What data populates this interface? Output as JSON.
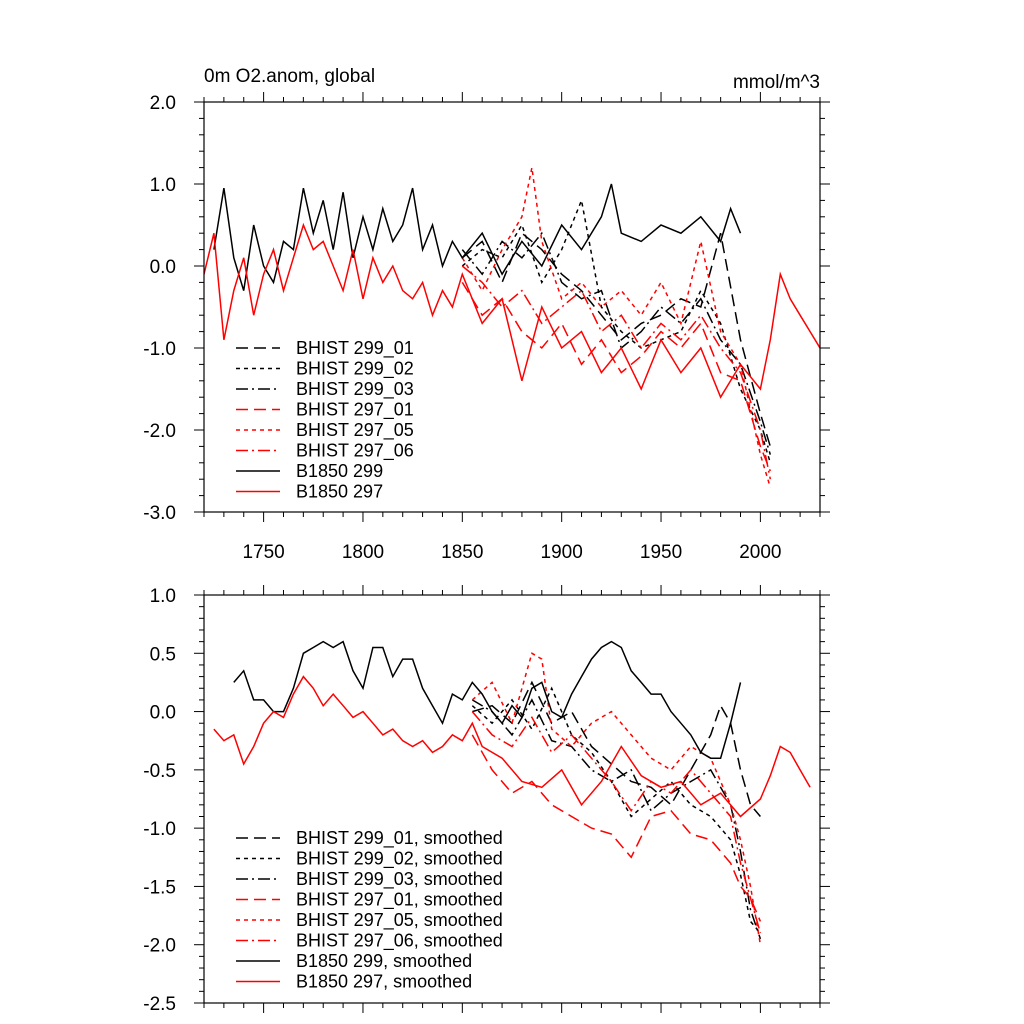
{
  "chart_data": [
    {
      "type": "line",
      "title_left": "0m O2.anom, global",
      "title_right": "mmol/m^3",
      "xlim": [
        1720,
        2030
      ],
      "ylim": [
        -3.0,
        2.0
      ],
      "x_ticks": [
        1750,
        1800,
        1850,
        1900,
        1950,
        2000
      ],
      "x_tick_labels": [
        "1750",
        "1800",
        "1850",
        "1900",
        "1950",
        "2000"
      ],
      "y_ticks": [
        2.0,
        1.0,
        0.0,
        -1.0,
        -2.0,
        -3.0
      ],
      "y_tick_labels": [
        "2.0",
        "1.0",
        "0.0",
        "-1.0",
        "-2.0",
        "-3.0"
      ],
      "legend_position": "lower-left",
      "series": [
        {
          "name": "BHIST 299_01",
          "color": "#000000",
          "dash": "long-dash",
          "x": [
            1850,
            1860,
            1870,
            1880,
            1890,
            1900,
            1910,
            1920,
            1930,
            1940,
            1950,
            1960,
            1970,
            1980,
            1990,
            2000,
            2005
          ],
          "y": [
            0.1,
            0.3,
            -0.2,
            0.4,
            0.2,
            -0.1,
            -0.3,
            -0.6,
            -0.9,
            -0.7,
            -0.6,
            -0.4,
            -0.5,
            0.4,
            -0.9,
            -1.8,
            -2.2
          ]
        },
        {
          "name": "BHIST 299_02",
          "color": "#000000",
          "dash": "short-dash",
          "x": [
            1850,
            1860,
            1870,
            1880,
            1890,
            1900,
            1910,
            1920,
            1930,
            1940,
            1950,
            1960,
            1970,
            1980,
            1990,
            2000,
            2005
          ],
          "y": [
            0.0,
            0.2,
            0.1,
            0.5,
            -0.2,
            0.2,
            0.8,
            -0.5,
            -0.8,
            -1.0,
            -0.9,
            -0.8,
            -0.3,
            -0.7,
            -1.5,
            -2.0,
            -2.4
          ]
        },
        {
          "name": "BHIST 299_03",
          "color": "#000000",
          "dash": "dash-dot",
          "x": [
            1850,
            1860,
            1870,
            1880,
            1890,
            1900,
            1910,
            1920,
            1930,
            1940,
            1950,
            1960,
            1970,
            1980,
            1990,
            2000,
            2005
          ],
          "y": [
            0.2,
            -0.1,
            0.3,
            0.1,
            0.4,
            -0.2,
            -0.4,
            -0.3,
            -1.0,
            -0.8,
            -0.5,
            -0.7,
            -0.4,
            -0.9,
            -1.2,
            -1.9,
            -2.3
          ]
        },
        {
          "name": "BHIST 297_01",
          "color": "#ff0000",
          "dash": "long-dash",
          "x": [
            1850,
            1860,
            1870,
            1880,
            1890,
            1900,
            1910,
            1920,
            1930,
            1940,
            1950,
            1960,
            1970,
            1980,
            1990,
            2000,
            2005
          ],
          "y": [
            -0.2,
            -0.6,
            -0.4,
            -0.8,
            -1.0,
            -0.7,
            -1.2,
            -0.9,
            -1.3,
            -1.1,
            -0.8,
            -1.0,
            -0.7,
            -1.3,
            -1.4,
            -2.2,
            -2.5
          ]
        },
        {
          "name": "BHIST 297_05",
          "color": "#ff0000",
          "dash": "short-dash",
          "x": [
            1850,
            1860,
            1870,
            1880,
            1885,
            1890,
            1900,
            1910,
            1920,
            1930,
            1940,
            1950,
            1960,
            1970,
            1980,
            1990,
            2000,
            2005
          ],
          "y": [
            0.1,
            -0.3,
            0.2,
            0.6,
            1.2,
            0.3,
            -0.4,
            -0.2,
            -0.5,
            -0.3,
            -0.6,
            -0.2,
            -0.7,
            0.3,
            -0.8,
            -1.2,
            -2.3,
            -2.7
          ]
        },
        {
          "name": "BHIST 297_06",
          "color": "#ff0000",
          "dash": "dash-dot",
          "x": [
            1850,
            1860,
            1870,
            1880,
            1890,
            1900,
            1910,
            1920,
            1930,
            1940,
            1950,
            1960,
            1970,
            1980,
            1990,
            2000,
            2005
          ],
          "y": [
            0.0,
            -0.2,
            -0.5,
            -0.3,
            -0.7,
            -0.5,
            -0.3,
            -0.8,
            -0.6,
            -1.0,
            -0.7,
            -0.9,
            -0.6,
            -1.0,
            -1.3,
            -2.0,
            -2.6
          ]
        },
        {
          "name": "B1850 299",
          "color": "#000000",
          "dash": "solid",
          "x": [
            1725,
            1730,
            1735,
            1740,
            1745,
            1750,
            1755,
            1760,
            1765,
            1770,
            1775,
            1780,
            1785,
            1790,
            1795,
            1800,
            1805,
            1810,
            1815,
            1820,
            1825,
            1830,
            1835,
            1840,
            1845,
            1850,
            1860,
            1870,
            1880,
            1890,
            1900,
            1910,
            1920,
            1925,
            1930,
            1940,
            1950,
            1960,
            1970,
            1980,
            1985,
            1990
          ],
          "y": [
            0.2,
            0.95,
            0.1,
            -0.3,
            0.5,
            0.0,
            -0.2,
            0.3,
            0.2,
            0.95,
            0.4,
            0.8,
            0.2,
            0.9,
            0.1,
            0.6,
            0.2,
            0.7,
            0.3,
            0.5,
            0.95,
            0.2,
            0.5,
            0.0,
            0.3,
            0.1,
            0.4,
            -0.1,
            0.3,
            0.0,
            0.5,
            0.2,
            0.6,
            1.0,
            0.4,
            0.3,
            0.5,
            0.4,
            0.6,
            0.3,
            0.7,
            0.4
          ]
        },
        {
          "name": "B1850 297",
          "color": "#ff0000",
          "dash": "solid",
          "x": [
            1720,
            1725,
            1730,
            1735,
            1740,
            1745,
            1750,
            1755,
            1760,
            1765,
            1770,
            1775,
            1780,
            1785,
            1790,
            1795,
            1800,
            1805,
            1810,
            1815,
            1820,
            1825,
            1830,
            1835,
            1840,
            1845,
            1850,
            1860,
            1870,
            1880,
            1890,
            1900,
            1910,
            1920,
            1930,
            1940,
            1950,
            1960,
            1970,
            1980,
            1990,
            2000,
            2005,
            2010,
            2015,
            2020,
            2025,
            2030
          ],
          "y": [
            -0.1,
            0.4,
            -0.9,
            -0.3,
            0.1,
            -0.6,
            -0.1,
            0.2,
            -0.3,
            0.1,
            0.5,
            0.2,
            0.3,
            0.0,
            -0.3,
            0.2,
            -0.4,
            0.1,
            -0.2,
            0.0,
            -0.3,
            -0.4,
            -0.2,
            -0.6,
            -0.3,
            -0.5,
            -0.1,
            -0.7,
            -0.4,
            -1.4,
            -0.5,
            -1.0,
            -0.8,
            -1.3,
            -1.0,
            -1.5,
            -0.9,
            -1.3,
            -1.0,
            -1.6,
            -1.2,
            -1.5,
            -0.9,
            -0.1,
            -0.4,
            -0.6,
            -0.8,
            -1.0
          ]
        }
      ]
    },
    {
      "type": "line",
      "xlim": [
        1720,
        2030
      ],
      "ylim": [
        -2.5,
        1.0
      ],
      "y_ticks": [
        1.0,
        0.5,
        0.0,
        -0.5,
        -1.0,
        -1.5,
        -2.0,
        -2.5
      ],
      "y_tick_labels": [
        "1.0",
        "0.5",
        "0.0",
        "-0.5",
        "-1.0",
        "-1.5",
        "-2.0",
        "-2.5"
      ],
      "legend_position": "lower-left",
      "series": [
        {
          "name": "BHIST 299_01, smoothed",
          "color": "#000000",
          "dash": "long-dash",
          "x": [
            1855,
            1865,
            1875,
            1885,
            1895,
            1905,
            1915,
            1925,
            1935,
            1945,
            1955,
            1965,
            1975,
            1980,
            1985,
            1990,
            1995,
            2000
          ],
          "y": [
            0.0,
            0.05,
            -0.1,
            0.25,
            -0.1,
            0.0,
            -0.3,
            -0.45,
            -0.6,
            -0.65,
            -0.8,
            -0.5,
            -0.2,
            0.05,
            -0.1,
            -0.5,
            -0.8,
            -0.9
          ]
        },
        {
          "name": "BHIST 299_02, smoothed",
          "color": "#000000",
          "dash": "short-dash",
          "x": [
            1855,
            1865,
            1875,
            1885,
            1895,
            1905,
            1915,
            1925,
            1935,
            1945,
            1955,
            1965,
            1975,
            1985,
            1990,
            1995,
            2000
          ],
          "y": [
            0.05,
            -0.1,
            0.1,
            -0.15,
            0.2,
            -0.2,
            -0.35,
            -0.6,
            -0.9,
            -0.75,
            -0.6,
            -0.8,
            -0.9,
            -1.1,
            -1.4,
            -1.8,
            -1.9
          ]
        },
        {
          "name": "BHIST 299_03, smoothed",
          "color": "#000000",
          "dash": "dash-dot",
          "x": [
            1855,
            1865,
            1875,
            1885,
            1895,
            1905,
            1915,
            1925,
            1935,
            1945,
            1955,
            1965,
            1975,
            1985,
            1990,
            1995,
            2000
          ],
          "y": [
            0.1,
            0.0,
            -0.2,
            0.1,
            -0.25,
            -0.3,
            -0.5,
            -0.6,
            -0.5,
            -0.85,
            -0.7,
            -0.6,
            -0.5,
            -0.8,
            -1.2,
            -1.7,
            -1.95
          ]
        },
        {
          "name": "BHIST 297_01, smoothed",
          "color": "#ff0000",
          "dash": "long-dash",
          "x": [
            1855,
            1865,
            1875,
            1885,
            1895,
            1905,
            1915,
            1925,
            1935,
            1945,
            1955,
            1965,
            1975,
            1985,
            1990,
            1995,
            2000
          ],
          "y": [
            -0.2,
            -0.5,
            -0.7,
            -0.6,
            -0.8,
            -0.9,
            -1.0,
            -1.05,
            -1.25,
            -0.9,
            -0.85,
            -1.05,
            -1.1,
            -1.3,
            -1.5,
            -1.6,
            -1.8
          ]
        },
        {
          "name": "BHIST 297_05, smoothed",
          "color": "#ff0000",
          "dash": "short-dash",
          "x": [
            1855,
            1865,
            1875,
            1885,
            1890,
            1895,
            1905,
            1915,
            1925,
            1935,
            1945,
            1955,
            1965,
            1975,
            1985,
            1990,
            1995,
            2000
          ],
          "y": [
            0.1,
            0.25,
            -0.1,
            0.5,
            0.45,
            -0.15,
            -0.3,
            -0.1,
            0.0,
            -0.2,
            -0.4,
            -0.5,
            -0.3,
            -0.4,
            -0.8,
            -1.1,
            -1.5,
            -2.0
          ]
        },
        {
          "name": "BHIST 297_06, smoothed",
          "color": "#ff0000",
          "dash": "dash-dot",
          "x": [
            1855,
            1865,
            1875,
            1885,
            1895,
            1905,
            1915,
            1925,
            1935,
            1945,
            1955,
            1965,
            1975,
            1985,
            1990,
            1995,
            2000
          ],
          "y": [
            0.0,
            -0.2,
            -0.3,
            -0.05,
            -0.35,
            -0.2,
            -0.4,
            -0.6,
            -0.85,
            -0.6,
            -0.7,
            -0.5,
            -0.7,
            -0.9,
            -1.3,
            -1.6,
            -1.9
          ]
        },
        {
          "name": "B1850 299, smoothed",
          "color": "#000000",
          "dash": "solid",
          "x": [
            1735,
            1740,
            1745,
            1750,
            1755,
            1760,
            1765,
            1770,
            1775,
            1780,
            1785,
            1790,
            1795,
            1800,
            1805,
            1810,
            1815,
            1820,
            1825,
            1830,
            1835,
            1840,
            1845,
            1850,
            1855,
            1860,
            1865,
            1870,
            1875,
            1880,
            1885,
            1890,
            1895,
            1900,
            1905,
            1910,
            1915,
            1920,
            1925,
            1930,
            1935,
            1940,
            1945,
            1950,
            1955,
            1960,
            1965,
            1970,
            1975,
            1980,
            1985,
            1990
          ],
          "y": [
            0.25,
            0.35,
            0.1,
            0.1,
            0.0,
            0.0,
            0.2,
            0.5,
            0.55,
            0.6,
            0.55,
            0.6,
            0.35,
            0.2,
            0.55,
            0.55,
            0.3,
            0.45,
            0.45,
            0.2,
            0.05,
            -0.1,
            0.15,
            0.1,
            0.25,
            0.15,
            0.0,
            -0.1,
            0.05,
            -0.05,
            0.2,
            0.25,
            0.0,
            -0.05,
            0.15,
            0.3,
            0.45,
            0.55,
            0.6,
            0.55,
            0.35,
            0.25,
            0.15,
            0.15,
            0.0,
            -0.1,
            -0.2,
            -0.35,
            -0.4,
            -0.4,
            -0.1,
            0.25
          ]
        },
        {
          "name": "B1850 297, smoothed",
          "color": "#ff0000",
          "dash": "solid",
          "x": [
            1725,
            1730,
            1735,
            1740,
            1745,
            1750,
            1755,
            1760,
            1765,
            1770,
            1775,
            1780,
            1785,
            1790,
            1795,
            1800,
            1805,
            1810,
            1815,
            1820,
            1825,
            1830,
            1835,
            1840,
            1845,
            1850,
            1855,
            1860,
            1870,
            1880,
            1890,
            1900,
            1910,
            1920,
            1930,
            1940,
            1950,
            1960,
            1970,
            1980,
            1990,
            2000,
            2005,
            2010,
            2015,
            2020,
            2025
          ],
          "y": [
            -0.15,
            -0.25,
            -0.2,
            -0.45,
            -0.3,
            -0.1,
            0.0,
            -0.05,
            0.15,
            0.3,
            0.2,
            0.05,
            0.15,
            0.05,
            -0.05,
            0.0,
            -0.1,
            -0.2,
            -0.15,
            -0.25,
            -0.3,
            -0.25,
            -0.35,
            -0.3,
            -0.2,
            -0.25,
            -0.1,
            -0.3,
            -0.4,
            -0.6,
            -0.65,
            -0.5,
            -0.8,
            -0.6,
            -0.3,
            -0.55,
            -0.65,
            -0.6,
            -0.8,
            -0.7,
            -0.9,
            -0.75,
            -0.55,
            -0.3,
            -0.35,
            -0.5,
            -0.65
          ]
        }
      ]
    }
  ]
}
